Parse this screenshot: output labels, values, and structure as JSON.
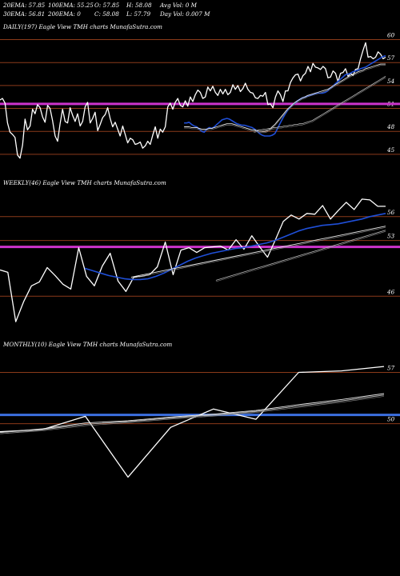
{
  "header": {
    "row1": [
      "20EMA: 57.85",
      "100EMA: 55.25",
      "O: 57.85",
      "H: 58.08",
      "Avg Vol: 0  M"
    ],
    "row2": [
      "30EMA: 56.81",
      "200EMA: 0",
      "C: 58.08",
      "L: 57.79",
      "Day Vol: 0.007 M"
    ]
  },
  "colors": {
    "background": "#000000",
    "price": "#ffffff",
    "ema_fast": "#1f4fd8",
    "ema_slow": "#e8e8e8",
    "level_line": "#8b3a1a",
    "magenta_level": "#cc33cc",
    "blue_level": "#3b6fe0"
  },
  "chart_data": [
    {
      "type": "line",
      "title": "DAILY(197) Eagle  View  TMH charts MunafaSutra.com",
      "ytick_labels": [
        "60",
        "57",
        "54",
        "51",
        "48",
        "45"
      ],
      "levels": [
        60,
        57,
        54,
        51,
        48,
        45
      ],
      "highlight_level": 51.6,
      "series": [
        {
          "role": "price",
          "values": [
            52.1,
            52.3,
            51.7,
            49.1,
            47.9,
            47.6,
            47.2,
            44.9,
            44.5,
            46.2,
            49.6,
            48.2,
            48.7,
            50.9,
            50.3,
            51.5,
            51.1,
            49.9,
            49.2,
            51.4,
            51.0,
            49.4,
            47.4,
            46.7,
            49.0,
            50.9,
            49.3,
            49.1,
            51.1,
            50.1,
            49.3,
            50.3,
            48.7,
            49.3,
            51.2,
            51.8,
            49.1,
            49.7,
            50.5,
            48.1,
            48.9,
            49.8,
            50.2,
            51.1,
            49.7,
            48.6,
            49.2,
            48.3,
            47.4,
            48.7,
            47.6,
            46.5,
            47.1,
            46.9,
            46.3,
            46.4,
            46.6,
            45.8,
            46.1,
            46.7,
            46.3,
            47.5,
            48.6,
            47.1,
            48.3,
            47.9,
            48.6,
            51.2,
            51.7,
            50.9,
            51.8,
            52.3,
            51.4,
            51.2,
            52.0,
            51.3,
            52.5,
            51.9,
            52.8,
            53.4,
            53.1,
            52.3,
            52.5,
            53.8,
            53.3,
            53.9,
            53.1,
            52.7,
            53.5,
            52.9,
            53.5,
            52.8,
            53.1,
            54.1,
            53.5,
            54.0,
            53.2,
            53.6,
            54.3,
            53.5,
            53.1,
            53.0,
            52.4,
            52.3,
            52.7,
            52.6,
            53.1,
            51.5,
            51.6,
            51.1,
            52.5,
            53.3,
            52.8,
            51.9,
            53.3,
            53.3,
            54.4,
            55.0,
            55.4,
            55.5,
            54.6,
            55.3,
            55.6,
            56.5,
            55.8,
            56.9,
            56.4,
            56.3,
            56.1,
            56.5,
            56.2,
            55.0,
            55.1,
            55.9,
            55.6,
            54.5,
            55.6,
            55.7,
            56.2,
            55.2,
            55.6,
            55.3,
            56.1,
            56.2,
            57.5,
            58.6,
            59.6,
            57.7,
            57.8,
            57.5,
            57.7,
            58.4,
            58.1,
            57.5,
            57.7
          ]
        },
        {
          "role": "ema_fast",
          "values": [
            49.1,
            49.1,
            49.2,
            48.9,
            48.7,
            48.6,
            48.3,
            48.0,
            47.9,
            48.3,
            48.5,
            48.4,
            48.6,
            48.9,
            49.2,
            49.5,
            49.6,
            49.7,
            49.6,
            49.4,
            49.2,
            49.0,
            48.9,
            48.8,
            48.8,
            48.7,
            48.6,
            48.5,
            48.3,
            48.0,
            47.7,
            47.5,
            47.4,
            47.4,
            47.4,
            47.5,
            47.7,
            48.3,
            49.0,
            49.6,
            50.2,
            50.7,
            51.1,
            51.4,
            51.7,
            52.0,
            52.2,
            52.4,
            52.5,
            52.6,
            52.7,
            52.8,
            52.9,
            53.0,
            53.0,
            53.0,
            53.1,
            53.3,
            53.6,
            53.9,
            54.2,
            54.5,
            54.8,
            55.1,
            55.4,
            55.5,
            55.6,
            55.8,
            55.9,
            56.0,
            56.2,
            56.3,
            56.4,
            56.6,
            56.8,
            57.0,
            57.2,
            57.4,
            57.6,
            57.8,
            57.9
          ]
        },
        {
          "role": "ema_30",
          "values": [
            48.6,
            48.6,
            48.6,
            48.5,
            48.5,
            48.5,
            48.4,
            48.3,
            48.3,
            48.3,
            48.4,
            48.4,
            48.5,
            48.6,
            48.7,
            48.8,
            48.9,
            49.0,
            49.0,
            49.0,
            48.9,
            48.8,
            48.7,
            48.6,
            48.5,
            48.4,
            48.3,
            48.2,
            48.2,
            48.1,
            48.0,
            48.0,
            48.0,
            48.1,
            48.3,
            48.6,
            48.9,
            49.3,
            49.7,
            50.1,
            50.5,
            50.9,
            51.2,
            51.5,
            51.8,
            52.0,
            52.2,
            52.4,
            52.5,
            52.7,
            52.8,
            52.9,
            53.0,
            53.1,
            53.2,
            53.3,
            53.4,
            53.5,
            53.7,
            53.9,
            54.1,
            54.3,
            54.5,
            54.7,
            54.9,
            55.1,
            55.3,
            55.5,
            55.6,
            55.8,
            55.9,
            56.0,
            56.2,
            56.3,
            56.4,
            56.5,
            56.6,
            56.7,
            56.8,
            56.8,
            56.8
          ]
        },
        {
          "role": "ema_100",
          "values": [
            48.0,
            48.1,
            48.2,
            48.2,
            48.3,
            48.3,
            48.4,
            48.4,
            48.5,
            48.5,
            48.6,
            48.6,
            48.7,
            48.7,
            48.8,
            48.8,
            48.9,
            48.9,
            49.0,
            49.0,
            49.1,
            49.2,
            49.3,
            49.4,
            49.6,
            49.8,
            50.0,
            50.2,
            50.4,
            50.6,
            50.8,
            51.0,
            51.2,
            51.4,
            51.6,
            51.8,
            52.0,
            52.2,
            52.4,
            52.6,
            52.8,
            53.0,
            53.2,
            53.4,
            53.6,
            53.8,
            54.0,
            54.2,
            54.4,
            54.6,
            54.8,
            55.0,
            55.2
          ]
        }
      ],
      "ylim": [
        43,
        61
      ]
    },
    {
      "type": "line",
      "title": "WEEKLY(46) Eagle  View  TMH charts MunafaSutra.com",
      "ytick_labels": [
        "56",
        "53",
        "46"
      ],
      "levels": [
        56,
        53,
        46
      ],
      "highlight_level": 52.2,
      "series": [
        {
          "role": "price",
          "values": [
            49.3,
            49.0,
            42.8,
            45.3,
            47.3,
            47.8,
            49.6,
            48.6,
            47.5,
            46.9,
            52.1,
            48.5,
            47.3,
            49.8,
            51.4,
            47.9,
            46.6,
            48.4,
            48.5,
            48.7,
            49.7,
            52.8,
            48.7,
            51.8,
            52.1,
            51.5,
            52.1,
            52.2,
            52.3,
            51.8,
            53.1,
            51.9,
            53.6,
            52.2,
            50.9,
            53.1,
            55.4,
            56.2,
            55.7,
            56.4,
            56.3,
            57.4,
            55.7,
            56.8,
            57.8,
            56.9,
            58.2,
            58.1,
            57.3,
            57.3
          ]
        },
        {
          "role": "ema_fast",
          "values": [
            49.5,
            49.2,
            48.9,
            48.6,
            48.4,
            48.2,
            48.1,
            48.1,
            48.2,
            48.5,
            48.9,
            49.4,
            49.9,
            50.4,
            50.8,
            51.1,
            51.4,
            51.6,
            51.8,
            52.0,
            52.1,
            52.3,
            52.5,
            52.7,
            53.0,
            53.4,
            53.8,
            54.2,
            54.5,
            54.7,
            54.9,
            55.0,
            55.1,
            55.3,
            55.5,
            55.7,
            56.0,
            56.2,
            56.4
          ]
        },
        {
          "role": "ema_30",
          "values": [
            48.4,
            48.6,
            48.8,
            49.0,
            49.2,
            49.4,
            49.6,
            49.8,
            50.0,
            50.2,
            50.4,
            50.6,
            50.8,
            51.0,
            51.2,
            51.4,
            51.6,
            51.8,
            52.0,
            52.2,
            52.4,
            52.6,
            52.8,
            53.0,
            53.2,
            53.4,
            53.6,
            53.8,
            54.0,
            54.2,
            54.4,
            54.6,
            54.8
          ]
        },
        {
          "role": "ema_100",
          "values": [
            48.0,
            48.3,
            48.6,
            48.9,
            49.2,
            49.5,
            49.8,
            50.1,
            50.4,
            50.7,
            51.0,
            51.3,
            51.6,
            51.9,
            52.2,
            52.5,
            52.8,
            53.1,
            53.4,
            53.7,
            54.0,
            54.3
          ]
        }
      ],
      "ylim": [
        41.5,
        59.5
      ]
    },
    {
      "type": "line",
      "title": "MONTHLY(10) Eagle  View  TMH charts MunafaSutra.com",
      "ytick_labels": [
        "57",
        "50"
      ],
      "levels": [
        57,
        50
      ],
      "highlight_level": 51.2,
      "series": [
        {
          "role": "price",
          "values": [
            48.9,
            49.2,
            51.0,
            42.7,
            49.5,
            52.0,
            50.6,
            57.0,
            57.2,
            57.8
          ]
        },
        {
          "role": "ema_30",
          "values": [
            48.8,
            49.3,
            50.1,
            50.4,
            50.9,
            51.3,
            51.8,
            52.6,
            53.3,
            54.1
          ]
        },
        {
          "role": "ema_100",
          "values": [
            48.8,
            49.2,
            49.9,
            50.3,
            50.8,
            51.2,
            51.7,
            52.4,
            53.1,
            53.9
          ]
        }
      ],
      "ylim": [
        41,
        60
      ]
    }
  ]
}
